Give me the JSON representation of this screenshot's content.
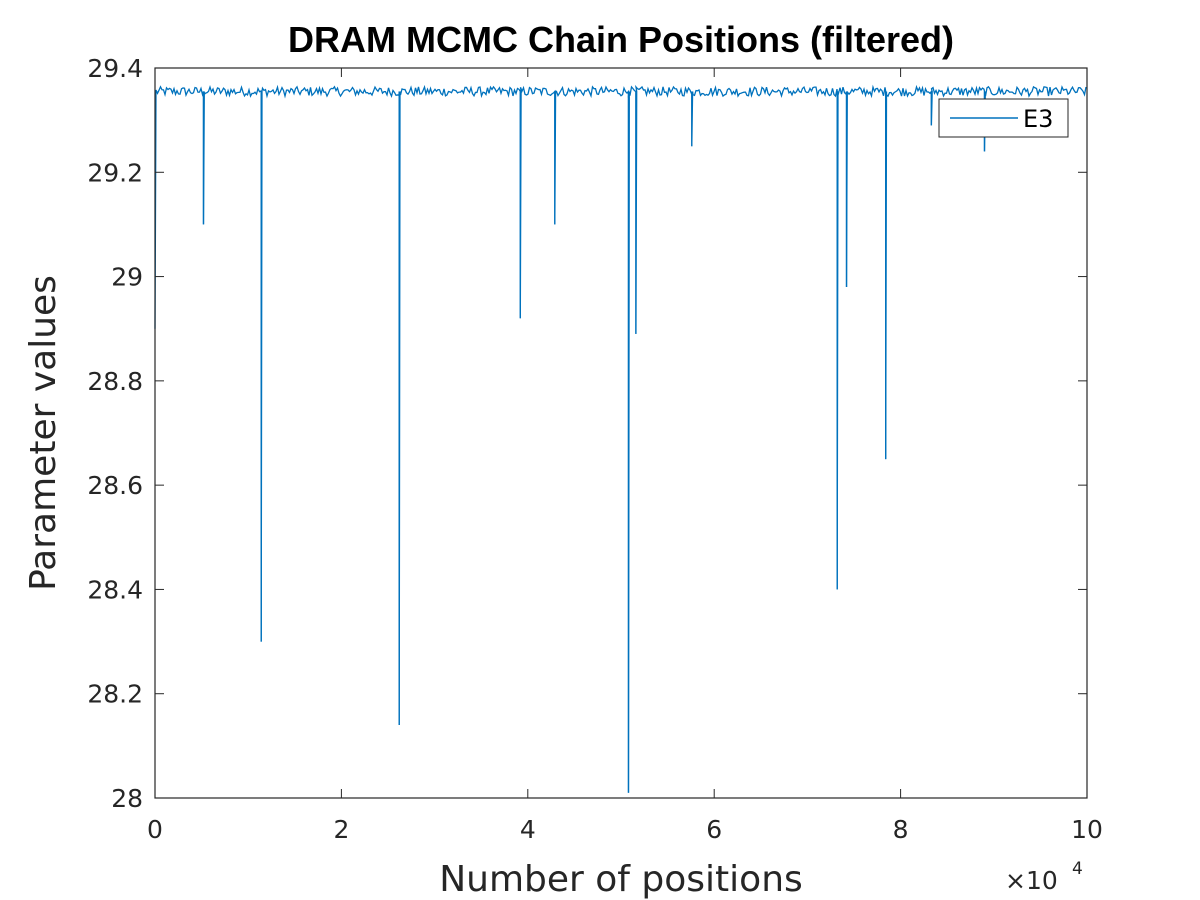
{
  "chart_data": {
    "type": "line",
    "title": "DRAM MCMC Chain Positions (filtered)",
    "xlabel": "Number of positions",
    "ylabel": "Parameter values",
    "x_exponent_label": "×10",
    "x_exponent_power": "4",
    "x_multiplier": 10000,
    "xlim": [
      0,
      100000
    ],
    "ylim": [
      28,
      29.4
    ],
    "xticks": [
      0,
      2,
      4,
      6,
      8,
      10
    ],
    "xtick_labels": [
      "0",
      "2",
      "4",
      "6",
      "8",
      "10"
    ],
    "yticks": [
      28,
      28.2,
      28.4,
      28.6,
      28.8,
      29,
      29.2,
      29.4
    ],
    "ytick_labels": [
      "28",
      "28.2",
      "28.4",
      "28.6",
      "28.8",
      "29",
      "29.2",
      "29.4"
    ],
    "grid": false,
    "legend_position": "top-right",
    "baseline": 29.355,
    "series": [
      {
        "name": "E3",
        "color": "#0072BD",
        "start_value": 28.9,
        "dips": [
          {
            "x": 5200,
            "y": 29.1
          },
          {
            "x": 11400,
            "y": 28.3
          },
          {
            "x": 26200,
            "y": 28.14
          },
          {
            "x": 39200,
            "y": 28.92
          },
          {
            "x": 42900,
            "y": 29.1
          },
          {
            "x": 50800,
            "y": 28.01
          },
          {
            "x": 51600,
            "y": 28.89
          },
          {
            "x": 57600,
            "y": 29.25
          },
          {
            "x": 73200,
            "y": 28.4
          },
          {
            "x": 74200,
            "y": 28.98
          },
          {
            "x": 78400,
            "y": 28.65
          },
          {
            "x": 83300,
            "y": 29.29
          },
          {
            "x": 89000,
            "y": 29.24
          }
        ]
      }
    ]
  }
}
